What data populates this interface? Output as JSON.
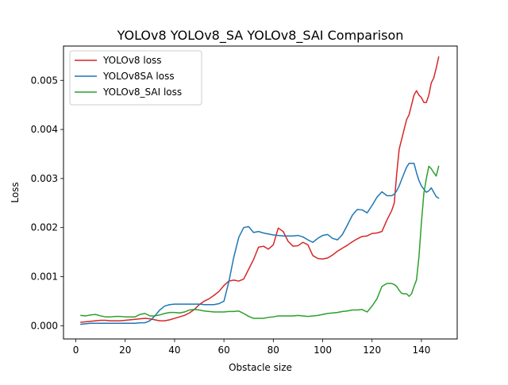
{
  "chart_data": {
    "type": "line",
    "title": "YOLOv8  YOLOv8_SA YOLOv8_SAI  Comparison",
    "xlabel": "Obstacle size",
    "ylabel": "Loss",
    "xlim": [
      -5,
      154.5
    ],
    "ylim": [
      -0.00027,
      0.0057
    ],
    "xticks": [
      0,
      20,
      40,
      60,
      80,
      100,
      120,
      140
    ],
    "yticks": [
      0.0,
      0.001,
      0.002,
      0.003,
      0.004,
      0.005
    ],
    "grid": false,
    "legend_position": "top-left",
    "x": [
      2,
      4,
      6,
      8,
      10,
      12,
      14,
      16,
      18,
      20,
      22,
      24,
      26,
      28,
      30,
      32,
      34,
      36,
      38,
      40,
      42,
      44,
      46,
      48,
      50,
      52,
      54,
      56,
      58,
      60,
      62,
      64,
      66,
      68,
      70,
      72,
      74,
      76,
      78,
      80,
      82,
      84,
      86,
      88,
      90,
      92,
      94,
      96,
      98,
      100,
      102,
      104,
      106,
      108,
      110,
      112,
      114,
      116,
      118,
      120,
      122,
      124,
      126,
      128,
      129,
      130,
      131,
      132,
      133,
      134,
      135,
      136,
      137,
      138,
      139,
      140,
      141,
      142,
      143,
      144,
      145,
      146,
      147
    ],
    "series": [
      {
        "name": "YOLOv8 loss",
        "color": "#d62728",
        "values": [
          7e-05,
          8e-05,
          9e-05,
          0.0001,
          0.00011,
          0.00011,
          0.0001,
          0.0001,
          0.0001,
          0.00011,
          0.00012,
          0.00013,
          0.00014,
          0.00015,
          0.00014,
          0.00012,
          0.0001,
          0.0001,
          0.00012,
          0.00015,
          0.00018,
          0.00021,
          0.00026,
          0.00033,
          0.00043,
          0.0005,
          0.00055,
          0.00062,
          0.0007,
          0.00082,
          0.00091,
          0.00093,
          0.00091,
          0.00095,
          0.00115,
          0.00135,
          0.0016,
          0.00162,
          0.00156,
          0.00165,
          0.00199,
          0.00192,
          0.00172,
          0.00162,
          0.00163,
          0.0017,
          0.00165,
          0.00143,
          0.00137,
          0.00136,
          0.00138,
          0.00144,
          0.00152,
          0.00158,
          0.00164,
          0.00171,
          0.00177,
          0.00182,
          0.00183,
          0.00188,
          0.00189,
          0.00192,
          0.00215,
          0.00235,
          0.0025,
          0.0031,
          0.0036,
          0.0038,
          0.004,
          0.0042,
          0.0043,
          0.0045,
          0.0047,
          0.00479,
          0.0047,
          0.00465,
          0.00455,
          0.00455,
          0.0047,
          0.00495,
          0.00505,
          0.00525,
          0.00548
        ]
      },
      {
        "name": "YOLOv8SA loss",
        "color": "#1f77b4",
        "values": [
          3e-05,
          4e-05,
          5e-05,
          5e-05,
          5e-05,
          5e-05,
          5e-05,
          5e-05,
          5e-05,
          5e-05,
          5e-05,
          5e-05,
          6e-05,
          6e-05,
          0.0001,
          0.0002,
          0.00032,
          0.0004,
          0.00043,
          0.00044,
          0.00044,
          0.00044,
          0.00044,
          0.00044,
          0.00044,
          0.00043,
          0.00043,
          0.00043,
          0.00045,
          0.0005,
          0.0009,
          0.0014,
          0.0018,
          0.002,
          0.00202,
          0.0019,
          0.00192,
          0.00189,
          0.00187,
          0.00185,
          0.00184,
          0.00183,
          0.00183,
          0.00183,
          0.00184,
          0.00181,
          0.00175,
          0.0017,
          0.00178,
          0.00184,
          0.00186,
          0.00178,
          0.00175,
          0.00186,
          0.00205,
          0.00225,
          0.00237,
          0.00236,
          0.0023,
          0.00245,
          0.00262,
          0.00273,
          0.00265,
          0.00265,
          0.00268,
          0.00275,
          0.00285,
          0.00298,
          0.00311,
          0.00323,
          0.00331,
          0.00331,
          0.00331,
          0.00312,
          0.00296,
          0.00285,
          0.00278,
          0.00272,
          0.00275,
          0.00281,
          0.00272,
          0.00263,
          0.0026
        ]
      },
      {
        "name": "YOLOv8_SAI loss",
        "color": "#2ca02c",
        "values": [
          0.00021,
          0.0002,
          0.00022,
          0.00023,
          0.0002,
          0.00018,
          0.00018,
          0.00019,
          0.00019,
          0.00018,
          0.00018,
          0.00018,
          0.00023,
          0.00025,
          0.0002,
          0.0002,
          0.00022,
          0.00025,
          0.00027,
          0.00027,
          0.00026,
          0.00028,
          0.00032,
          0.00033,
          0.00032,
          0.0003,
          0.00029,
          0.00028,
          0.00028,
          0.00028,
          0.00029,
          0.00029,
          0.0003,
          0.00025,
          0.00019,
          0.00015,
          0.00015,
          0.00015,
          0.00017,
          0.00018,
          0.0002,
          0.0002,
          0.0002,
          0.0002,
          0.00021,
          0.0002,
          0.00019,
          0.0002,
          0.00021,
          0.00023,
          0.00025,
          0.00026,
          0.00027,
          0.00029,
          0.0003,
          0.00032,
          0.00032,
          0.00033,
          0.00028,
          0.0004,
          0.00055,
          0.0008,
          0.00086,
          0.00086,
          0.00084,
          0.0008,
          0.00072,
          0.00066,
          0.00065,
          0.00065,
          0.0006,
          0.00065,
          0.0008,
          0.00093,
          0.0014,
          0.0021,
          0.0027,
          0.003,
          0.00325,
          0.0032,
          0.00312,
          0.00305,
          0.00325
        ]
      }
    ]
  }
}
